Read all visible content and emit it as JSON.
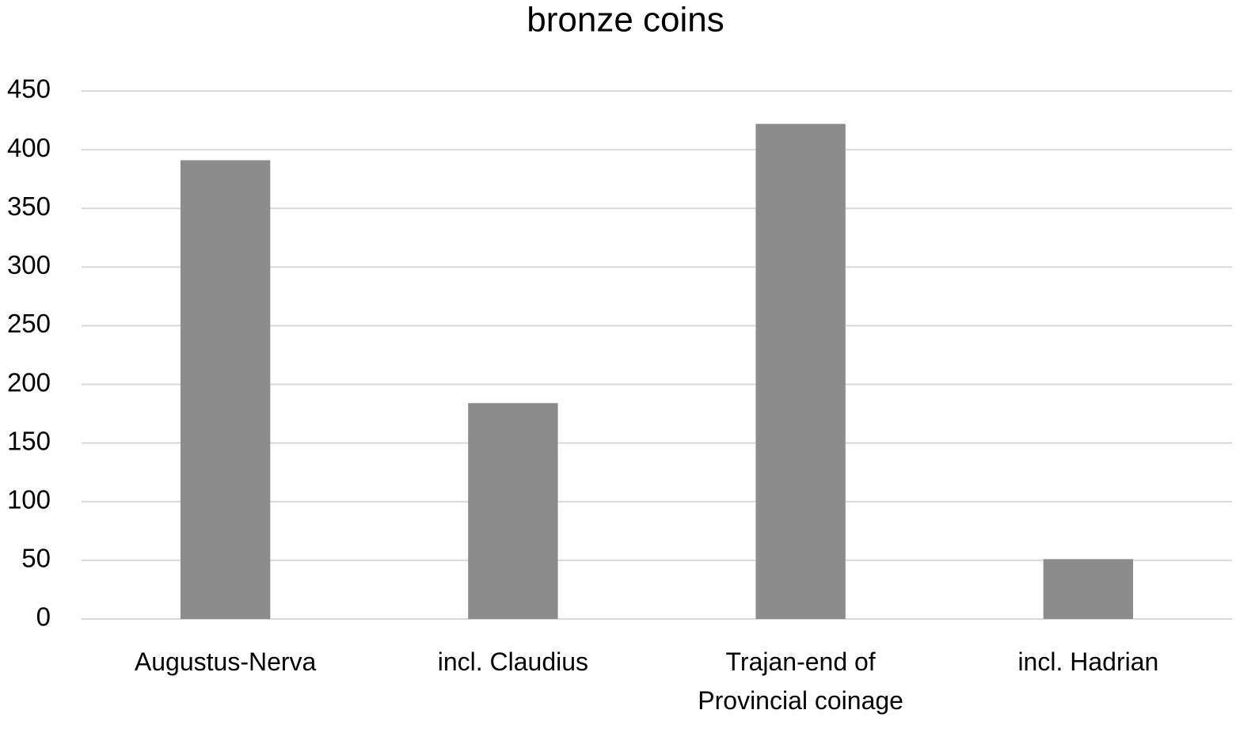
{
  "chart_data": {
    "type": "bar",
    "title": "bronze coins",
    "categories": [
      "Augustus-Nerva",
      "incl. Claudius",
      "Trajan-end of Provincial coinage",
      "incl. Hadrian"
    ],
    "values": [
      391,
      184,
      422,
      51
    ],
    "color": "#8c8c8c",
    "ylim": [
      0,
      450
    ],
    "yticks": [
      0,
      50,
      100,
      150,
      200,
      250,
      300,
      350,
      400,
      450
    ],
    "grid": true
  }
}
